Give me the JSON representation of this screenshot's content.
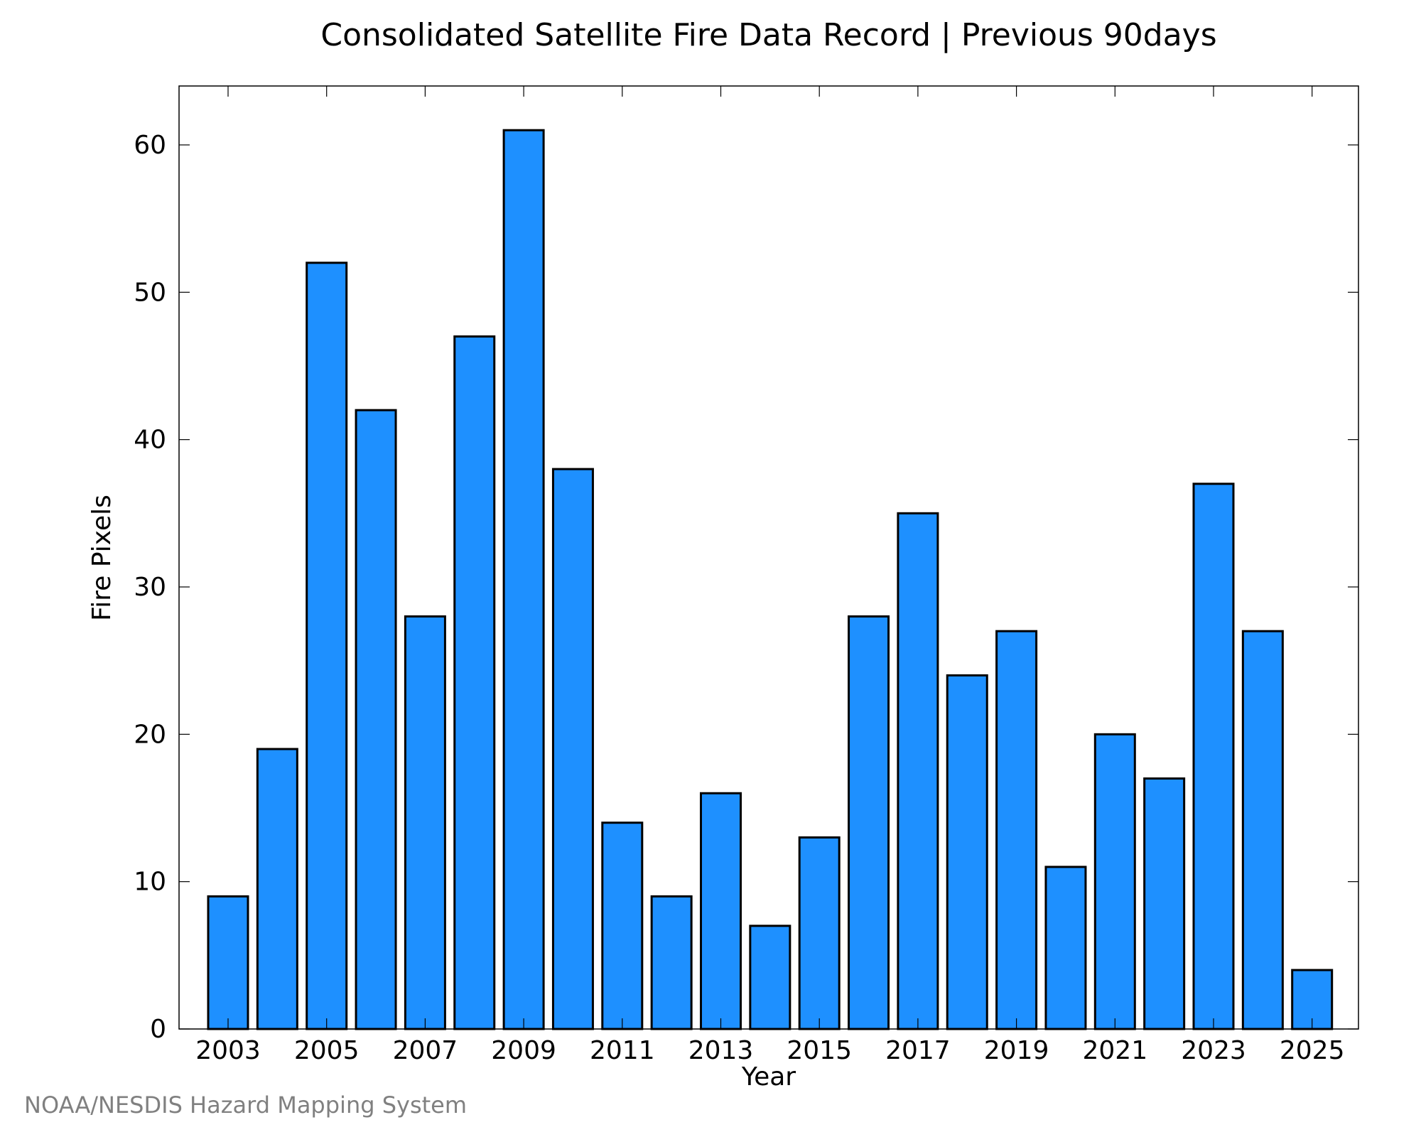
{
  "chart_data": {
    "type": "bar",
    "title": "Consolidated Satellite Fire Data Record | Previous 90days",
    "xlabel": "Year",
    "ylabel": "Fire Pixels",
    "categories": [
      "2003",
      "2004",
      "2005",
      "2006",
      "2007",
      "2008",
      "2009",
      "2010",
      "2011",
      "2012",
      "2013",
      "2014",
      "2015",
      "2016",
      "2017",
      "2018",
      "2019",
      "2020",
      "2021",
      "2022",
      "2023",
      "2024",
      "2025"
    ],
    "values": [
      9,
      19,
      52,
      42,
      28,
      47,
      61,
      38,
      14,
      9,
      16,
      7,
      13,
      28,
      35,
      24,
      27,
      11,
      20,
      17,
      37,
      27,
      4
    ],
    "x_tick_labels": [
      "2003",
      "2005",
      "2007",
      "2009",
      "2011",
      "2013",
      "2015",
      "2017",
      "2019",
      "2021",
      "2023",
      "2025"
    ],
    "y_tick_labels": [
      "0",
      "10",
      "20",
      "30",
      "40",
      "50",
      "60"
    ],
    "ylim": [
      0,
      64
    ],
    "grid": false,
    "bar_color": "#1e90ff",
    "bar_edge_color": "#000000"
  },
  "credit": "NOAA/NESDIS Hazard Mapping System"
}
